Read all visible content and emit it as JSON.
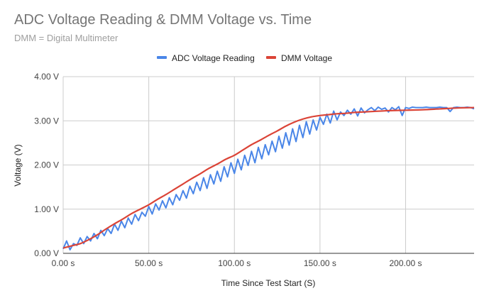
{
  "title": "ADC Voltage Reading & DMM Voltage vs. Time",
  "subtitle": "DMM = Digital Multimeter",
  "colors": {
    "adc": "#4a86e8",
    "dmm": "#db4437",
    "grid": "#cccccc",
    "axis": "#333333"
  },
  "chart_data": {
    "type": "line",
    "title": "ADC Voltage Reading & DMM Voltage vs. Time",
    "subtitle": "DMM = Digital Multimeter",
    "xlabel": "Time Since Test Start (S)",
    "ylabel": "Voltage (V)",
    "xlim": [
      0,
      240
    ],
    "ylim": [
      0,
      4
    ],
    "x_ticks": [
      0,
      50,
      100,
      150,
      200
    ],
    "x_tick_labels": [
      "0.00 s",
      "50.00 s",
      "100.00 s",
      "150.00 s",
      "200.00 s"
    ],
    "y_ticks": [
      0,
      1,
      2,
      3,
      4
    ],
    "y_tick_labels": [
      "0.00 V",
      "1.00 V",
      "2.00 V",
      "3.00 V",
      "4.00 V"
    ],
    "grid": true,
    "legend": "top-center",
    "series": [
      {
        "name": "ADC Voltage Reading",
        "color": "#4a86e8",
        "x": [
          0,
          2,
          4,
          6,
          8,
          10,
          12,
          14,
          16,
          18,
          20,
          22,
          24,
          26,
          28,
          30,
          32,
          34,
          36,
          38,
          40,
          42,
          44,
          46,
          48,
          50,
          52,
          54,
          56,
          58,
          60,
          62,
          64,
          66,
          68,
          70,
          72,
          74,
          76,
          78,
          80,
          82,
          84,
          86,
          88,
          90,
          92,
          94,
          96,
          98,
          100,
          102,
          104,
          106,
          108,
          110,
          112,
          114,
          116,
          118,
          120,
          122,
          124,
          126,
          128,
          130,
          132,
          134,
          136,
          138,
          140,
          142,
          144,
          146,
          148,
          150,
          152,
          154,
          156,
          158,
          160,
          162,
          164,
          166,
          168,
          170,
          172,
          174,
          176,
          178,
          180,
          182,
          184,
          186,
          188,
          190,
          192,
          194,
          196,
          198,
          200,
          202,
          204,
          206,
          208,
          210,
          212,
          214,
          216,
          218,
          220,
          222,
          224,
          226,
          228,
          230,
          232,
          234,
          236,
          238,
          240
        ],
        "values": [
          0.1,
          0.28,
          0.08,
          0.22,
          0.18,
          0.35,
          0.22,
          0.38,
          0.28,
          0.45,
          0.33,
          0.52,
          0.4,
          0.56,
          0.45,
          0.66,
          0.52,
          0.73,
          0.58,
          0.8,
          0.66,
          0.88,
          0.74,
          0.93,
          0.84,
          1.06,
          0.89,
          1.12,
          0.98,
          1.19,
          1.03,
          1.26,
          1.1,
          1.33,
          1.2,
          1.42,
          1.25,
          1.52,
          1.35,
          1.61,
          1.42,
          1.71,
          1.47,
          1.78,
          1.57,
          1.86,
          1.63,
          1.96,
          1.73,
          2.05,
          1.81,
          2.13,
          1.89,
          2.22,
          1.99,
          2.31,
          2.05,
          2.4,
          2.14,
          2.46,
          2.23,
          2.54,
          2.3,
          2.65,
          2.38,
          2.73,
          2.45,
          2.82,
          2.53,
          2.9,
          2.62,
          2.98,
          2.7,
          3.02,
          2.79,
          3.08,
          2.92,
          3.15,
          2.95,
          3.22,
          3.02,
          3.2,
          3.12,
          3.24,
          3.15,
          3.27,
          3.11,
          3.29,
          3.18,
          3.25,
          3.3,
          3.23,
          3.31,
          3.26,
          3.29,
          3.2,
          3.3,
          3.25,
          3.32,
          3.12,
          3.3,
          3.28,
          3.31,
          3.3,
          3.3,
          3.3,
          3.31,
          3.3,
          3.3,
          3.3,
          3.31,
          3.3,
          3.3,
          3.21,
          3.3,
          3.31,
          3.3,
          3.3,
          3.31,
          3.3,
          3.27
        ]
      },
      {
        "name": "DMM Voltage",
        "color": "#db4437",
        "x": [
          0,
          5,
          10,
          15,
          20,
          25,
          30,
          35,
          40,
          45,
          50,
          55,
          60,
          65,
          70,
          75,
          80,
          85,
          90,
          95,
          100,
          105,
          110,
          115,
          120,
          125,
          130,
          135,
          140,
          145,
          150,
          155,
          160,
          165,
          170,
          175,
          180,
          190,
          200,
          210,
          220,
          230,
          240
        ],
        "values": [
          0.12,
          0.17,
          0.22,
          0.31,
          0.42,
          0.55,
          0.67,
          0.78,
          0.9,
          1.0,
          1.1,
          1.22,
          1.33,
          1.45,
          1.57,
          1.69,
          1.8,
          1.92,
          2.02,
          2.13,
          2.22,
          2.34,
          2.46,
          2.56,
          2.67,
          2.77,
          2.88,
          2.97,
          3.04,
          3.09,
          3.12,
          3.14,
          3.16,
          3.17,
          3.19,
          3.2,
          3.21,
          3.23,
          3.24,
          3.25,
          3.27,
          3.29,
          3.3
        ]
      }
    ]
  }
}
